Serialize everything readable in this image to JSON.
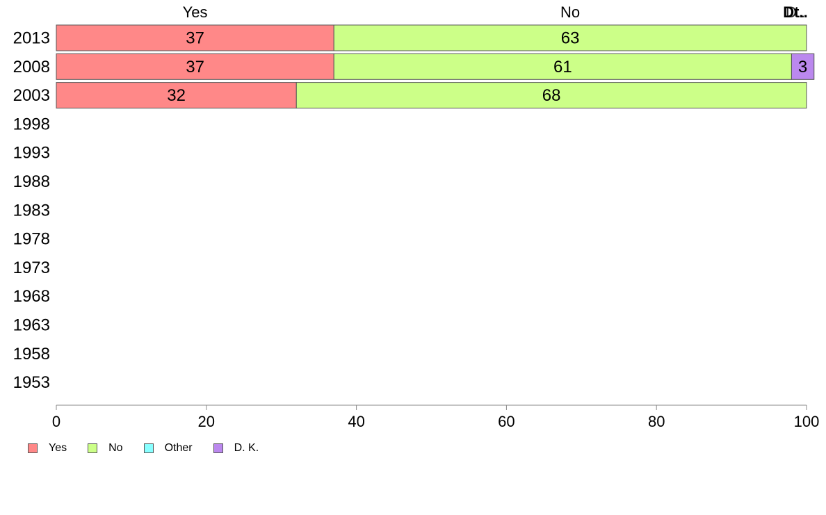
{
  "chart_data": {
    "type": "bar",
    "orientation": "horizontal",
    "stacked": true,
    "categories": [
      "2013",
      "2008",
      "2003",
      "1998",
      "1993",
      "1988",
      "1983",
      "1978",
      "1973",
      "1968",
      "1963",
      "1958",
      "1953"
    ],
    "series": [
      {
        "name": "Yes",
        "color": "#ff8888",
        "values": [
          37,
          37,
          32,
          null,
          null,
          null,
          null,
          null,
          null,
          null,
          null,
          null,
          null
        ]
      },
      {
        "name": "No",
        "color": "#ccff88",
        "values": [
          63,
          61,
          68,
          null,
          null,
          null,
          null,
          null,
          null,
          null,
          null,
          null,
          null
        ]
      },
      {
        "name": "Other",
        "color": "#88ffff",
        "values": [
          null,
          null,
          null,
          null,
          null,
          null,
          null,
          null,
          null,
          null,
          null,
          null,
          null
        ]
      },
      {
        "name": "D. K.",
        "color": "#bb88ee",
        "values": [
          null,
          3,
          null,
          null,
          null,
          null,
          null,
          null,
          null,
          null,
          null,
          null,
          null
        ]
      }
    ],
    "top_labels": [
      "Yes",
      "No",
      "Dt..",
      "D.."
    ],
    "x_ticks": [
      0,
      20,
      40,
      60,
      80,
      100
    ],
    "xlim": [
      0,
      100
    ],
    "grid": false,
    "legend_position": "bottom-left"
  }
}
